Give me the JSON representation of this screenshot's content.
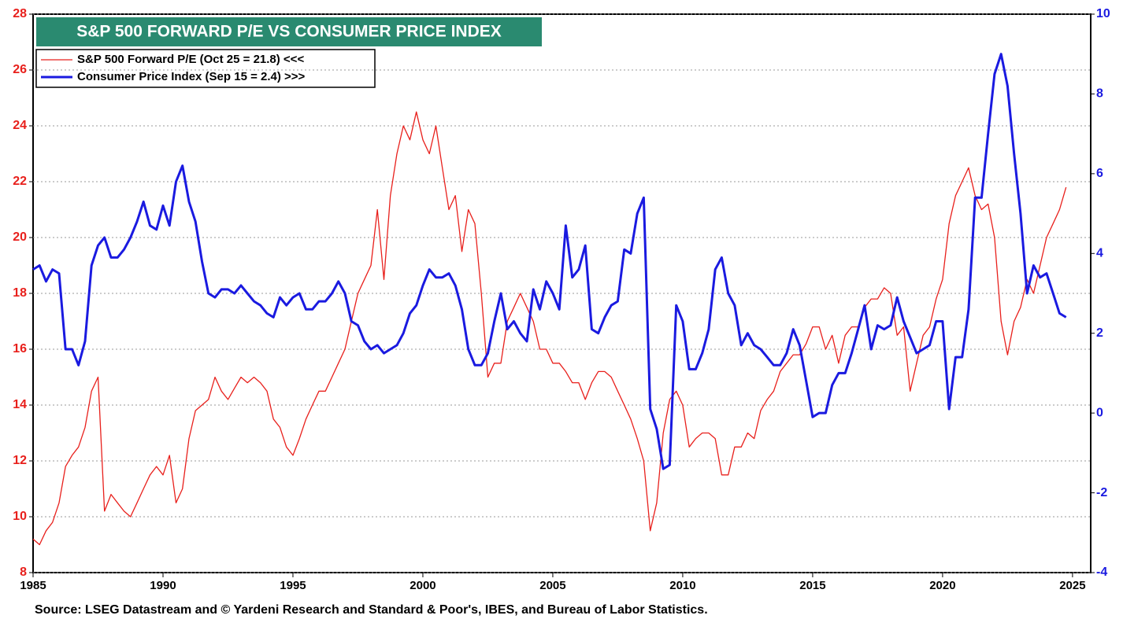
{
  "chart_data": {
    "type": "line",
    "title": "S&P 500 FORWARD P/E VS CONSUMER PRICE INDEX",
    "source": "Source: LSEG Datastream and © Yardeni Research and Standard & Poor's, IBES, and Bureau of Labor Statistics.",
    "title_color": "#2a8a70",
    "x": [
      1985,
      1985.25,
      1985.5,
      1985.75,
      1986,
      1986.25,
      1986.5,
      1986.75,
      1987,
      1987.25,
      1987.5,
      1987.75,
      1988,
      1988.25,
      1988.5,
      1988.75,
      1989,
      1989.25,
      1989.5,
      1989.75,
      1990,
      1990.25,
      1990.5,
      1990.75,
      1991,
      1991.25,
      1991.5,
      1991.75,
      1992,
      1992.25,
      1992.5,
      1992.75,
      1993,
      1993.25,
      1993.5,
      1993.75,
      1994,
      1994.25,
      1994.5,
      1994.75,
      1995,
      1995.25,
      1995.5,
      1995.75,
      1996,
      1996.25,
      1996.5,
      1996.75,
      1997,
      1997.25,
      1997.5,
      1997.75,
      1998,
      1998.25,
      1998.5,
      1998.75,
      1999,
      1999.25,
      1999.5,
      1999.75,
      2000,
      2000.25,
      2000.5,
      2000.75,
      2001,
      2001.25,
      2001.5,
      2001.75,
      2002,
      2002.25,
      2002.5,
      2002.75,
      2003,
      2003.25,
      2003.5,
      2003.75,
      2004,
      2004.25,
      2004.5,
      2004.75,
      2005,
      2005.25,
      2005.5,
      2005.75,
      2006,
      2006.25,
      2006.5,
      2006.75,
      2007,
      2007.25,
      2007.5,
      2007.75,
      2008,
      2008.25,
      2008.5,
      2008.75,
      2009,
      2009.25,
      2009.5,
      2009.75,
      2010,
      2010.25,
      2010.5,
      2010.75,
      2011,
      2011.25,
      2011.5,
      2011.75,
      2012,
      2012.25,
      2012.5,
      2012.75,
      2013,
      2013.25,
      2013.5,
      2013.75,
      2014,
      2014.25,
      2014.5,
      2014.75,
      2015,
      2015.25,
      2015.5,
      2015.75,
      2016,
      2016.25,
      2016.5,
      2016.75,
      2017,
      2017.25,
      2017.5,
      2017.75,
      2018,
      2018.25,
      2018.5,
      2018.75,
      2019,
      2019.25,
      2019.5,
      2019.75,
      2020,
      2020.25,
      2020.5,
      2020.75,
      2021,
      2021.25,
      2021.5,
      2021.75,
      2022,
      2022.25,
      2022.5,
      2022.75,
      2023,
      2023.25,
      2023.5,
      2023.75,
      2024,
      2024.25,
      2024.5,
      2024.75
    ],
    "series": [
      {
        "name": "S&P 500 Forward P/E (Oct 25 = 21.8) <<<",
        "color": "#e8201c",
        "width": 1.3,
        "values": [
          9.2,
          9.0,
          9.5,
          9.8,
          10.5,
          11.8,
          12.2,
          12.5,
          13.2,
          14.5,
          15.0,
          10.2,
          10.8,
          10.5,
          10.2,
          10.0,
          10.5,
          11.0,
          11.5,
          11.8,
          11.5,
          12.2,
          10.5,
          11.0,
          12.8,
          13.8,
          14.0,
          14.2,
          15.0,
          14.5,
          14.2,
          14.6,
          15.0,
          14.8,
          15.0,
          14.8,
          14.5,
          13.5,
          13.2,
          12.5,
          12.2,
          12.8,
          13.5,
          14.0,
          14.5,
          14.5,
          15.0,
          15.5,
          16.0,
          17.0,
          18.0,
          18.5,
          19.0,
          21.0,
          18.5,
          21.5,
          23.0,
          24.0,
          23.5,
          24.5,
          23.5,
          23.0,
          24.0,
          22.5,
          21.0,
          21.5,
          19.5,
          21.0,
          20.5,
          18.0,
          15.0,
          15.5,
          15.5,
          17.0,
          17.5,
          18.0,
          17.5,
          17.0,
          16.0,
          16.0,
          15.5,
          15.5,
          15.2,
          14.8,
          14.8,
          14.2,
          14.8,
          15.2,
          15.2,
          15.0,
          14.5,
          14.0,
          13.5,
          12.8,
          12.0,
          9.5,
          10.5,
          13.0,
          14.2,
          14.5,
          14.0,
          12.5,
          12.8,
          13.0,
          13.0,
          12.8,
          11.5,
          11.5,
          12.5,
          12.5,
          13.0,
          12.8,
          13.8,
          14.2,
          14.5,
          15.2,
          15.5,
          15.8,
          15.8,
          16.2,
          16.8,
          16.8,
          16.0,
          16.5,
          15.5,
          16.5,
          16.8,
          16.8,
          17.5,
          17.8,
          17.8,
          18.2,
          18.0,
          16.5,
          16.8,
          14.5,
          15.5,
          16.5,
          16.8,
          17.8,
          18.5,
          20.5,
          21.5,
          22.0,
          22.5,
          21.5,
          21.0,
          21.2,
          20.0,
          17.0,
          15.8,
          17.0,
          17.5,
          18.5,
          18.0,
          19.0,
          20.0,
          20.5,
          21.0,
          21.8
        ]
      },
      {
        "name": "Consumer Price Index (Sep 15 = 2.4) >>>",
        "color": "#1a1ae0",
        "width": 3,
        "axis": "y2",
        "values": [
          3.6,
          3.7,
          3.3,
          3.6,
          3.5,
          1.6,
          1.6,
          1.2,
          1.8,
          3.7,
          4.2,
          4.4,
          3.9,
          3.9,
          4.1,
          4.4,
          4.8,
          5.3,
          4.7,
          4.6,
          5.2,
          4.7,
          5.8,
          6.2,
          5.3,
          4.8,
          3.8,
          3.0,
          2.9,
          3.1,
          3.1,
          3.0,
          3.2,
          3.0,
          2.8,
          2.7,
          2.5,
          2.4,
          2.9,
          2.7,
          2.9,
          3.0,
          2.6,
          2.6,
          2.8,
          2.8,
          3.0,
          3.3,
          3.0,
          2.3,
          2.2,
          1.8,
          1.6,
          1.7,
          1.5,
          1.6,
          1.7,
          2.0,
          2.5,
          2.7,
          3.2,
          3.6,
          3.4,
          3.4,
          3.5,
          3.2,
          2.6,
          1.6,
          1.2,
          1.2,
          1.5,
          2.3,
          3.0,
          2.1,
          2.3,
          2.0,
          1.8,
          3.1,
          2.6,
          3.3,
          3.0,
          2.6,
          4.7,
          3.4,
          3.6,
          4.2,
          2.1,
          2.0,
          2.4,
          2.7,
          2.8,
          4.1,
          4.0,
          5.0,
          5.4,
          0.1,
          -0.4,
          -1.4,
          -1.3,
          2.7,
          2.3,
          1.1,
          1.1,
          1.5,
          2.1,
          3.6,
          3.9,
          3.0,
          2.7,
          1.7,
          2.0,
          1.7,
          1.6,
          1.4,
          1.2,
          1.2,
          1.5,
          2.1,
          1.7,
          0.8,
          -0.1,
          0.0,
          0.0,
          0.7,
          1.0,
          1.0,
          1.5,
          2.1,
          2.7,
          1.6,
          2.2,
          2.1,
          2.2,
          2.9,
          2.3,
          1.9,
          1.5,
          1.6,
          1.7,
          2.3,
          2.3,
          0.1,
          1.4,
          1.4,
          2.6,
          5.4,
          5.4,
          7.0,
          8.5,
          9.0,
          8.2,
          6.5,
          5.0,
          3.0,
          3.7,
          3.4,
          3.5,
          3.0,
          2.5,
          2.4
        ]
      }
    ],
    "xlim": [
      1985,
      2025.7
    ],
    "xticks": [
      1985,
      1990,
      1995,
      2000,
      2005,
      2010,
      2015,
      2020,
      2025
    ],
    "ylim": [
      8,
      28
    ],
    "yticks": [
      8,
      10,
      12,
      14,
      16,
      18,
      20,
      22,
      24,
      26,
      28
    ],
    "y_color": "#e8201c",
    "y2lim": [
      -4,
      10
    ],
    "y2ticks": [
      -4,
      -2,
      0,
      2,
      4,
      6,
      8,
      10
    ],
    "y2_color": "#1a1ae0",
    "grid": true
  }
}
